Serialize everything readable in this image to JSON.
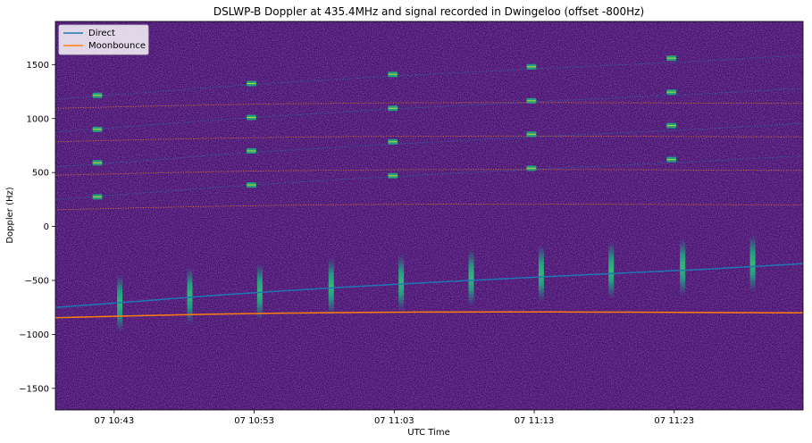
{
  "chart_data": {
    "type": "heatmap",
    "title": "DSLWP-B Doppler at 435.4MHz and signal recorded in Dwingeloo (offset -800Hz)",
    "xlabel": "UTC Time",
    "ylabel": "Doppler (Hz)",
    "x_tick_labels": [
      "07 10:43",
      "07 10:53",
      "07 11:03",
      "07 11:13",
      "07 11:23"
    ],
    "x_tick_minutes": [
      43,
      53,
      63,
      73,
      83
    ],
    "xlim_minutes": [
      38.8,
      92.2
    ],
    "y_ticks": [
      1500,
      1000,
      500,
      0,
      -500,
      -1000,
      -1500
    ],
    "y_tick_labels": [
      "1500",
      "1000",
      "500",
      "0",
      "−500",
      "−1000",
      "−1500"
    ],
    "ylim": [
      -1700,
      1900
    ],
    "legend_position": "upper left",
    "background_color": "#44106a",
    "series": [
      {
        "name": "Direct",
        "color": "#1f77b4",
        "x_minutes": [
          38.8,
          45,
          50,
          55,
          60,
          65,
          70,
          75,
          80,
          85,
          92.2
        ],
        "values": [
          -750,
          -690,
          -640,
          -597,
          -558,
          -523,
          -489,
          -458,
          -427,
          -397,
          -345
        ]
      },
      {
        "name": "Moonbounce",
        "color": "#ff7f0e",
        "x_minutes": [
          38.8,
          45,
          50,
          55,
          60,
          65,
          70,
          75,
          80,
          85,
          92.2
        ],
        "values": [
          -845,
          -826,
          -813,
          -803,
          -797,
          -793,
          -792,
          -792,
          -794,
          -797,
          -800
        ]
      }
    ],
    "offset_traces": {
      "direct_offsets_hz": [
        1000,
        1300,
        1625,
        1930
      ],
      "moonbounce_offsets_hz": [
        1000,
        1320,
        1630,
        1940
      ]
    },
    "signal_bursts": {
      "main_minutes": [
        43.4,
        48.4,
        53.4,
        58.5,
        63.5,
        68.5,
        73.5,
        78.5,
        83.6,
        88.6
      ],
      "main_center_hz": [
        -710,
        -640,
        -600,
        -555,
        -520,
        -475,
        -435,
        -405,
        -375,
        -340
      ],
      "upper_minutes": [
        41.8,
        52.8,
        62.9,
        72.8,
        82.8
      ],
      "upper_values_hz": [
        [
          275,
          590,
          900,
          1215
        ],
        [
          385,
          700,
          1010,
          1325
        ],
        [
          470,
          785,
          1095,
          1410
        ],
        [
          540,
          855,
          1165,
          1480
        ],
        [
          620,
          935,
          1245,
          1560
        ]
      ]
    }
  }
}
